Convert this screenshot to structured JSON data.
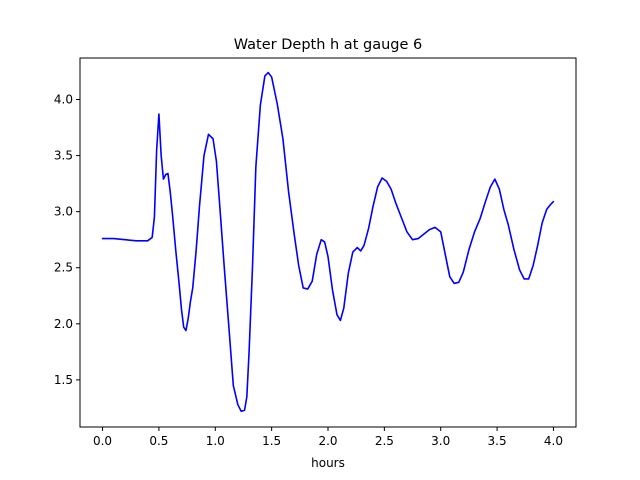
{
  "chart_data": {
    "type": "line",
    "title": "Water Depth h at gauge 6",
    "xlabel": "hours",
    "ylabel": "",
    "xlim": [
      -0.2,
      4.2
    ],
    "ylim": [
      1.08,
      4.37
    ],
    "x_ticks": [
      0.0,
      0.5,
      1.0,
      1.5,
      2.0,
      2.5,
      3.0,
      3.5,
      4.0
    ],
    "x_tick_labels": [
      "0.0",
      "0.5",
      "1.0",
      "1.5",
      "2.0",
      "2.5",
      "3.0",
      "3.5",
      "4.0"
    ],
    "y_ticks": [
      1.5,
      2.0,
      2.5,
      3.0,
      3.5,
      4.0
    ],
    "y_tick_labels": [
      "1.5",
      "2.0",
      "2.5",
      "3.0",
      "3.5",
      "4.0"
    ],
    "grid": false,
    "series": [
      {
        "color": "#0000ff",
        "x": [
          0.0,
          0.1,
          0.2,
          0.3,
          0.4,
          0.44,
          0.46,
          0.48,
          0.5,
          0.52,
          0.54,
          0.56,
          0.58,
          0.6,
          0.62,
          0.65,
          0.68,
          0.7,
          0.72,
          0.74,
          0.76,
          0.78,
          0.8,
          0.83,
          0.86,
          0.9,
          0.94,
          0.98,
          1.01,
          1.04,
          1.08,
          1.12,
          1.16,
          1.2,
          1.23,
          1.26,
          1.28,
          1.3,
          1.33,
          1.36,
          1.4,
          1.44,
          1.47,
          1.5,
          1.55,
          1.6,
          1.65,
          1.7,
          1.74,
          1.78,
          1.82,
          1.86,
          1.9,
          1.94,
          1.97,
          2.0,
          2.04,
          2.08,
          2.11,
          2.14,
          2.18,
          2.22,
          2.26,
          2.29,
          2.32,
          2.36,
          2.4,
          2.44,
          2.48,
          2.52,
          2.56,
          2.6,
          2.65,
          2.7,
          2.75,
          2.8,
          2.85,
          2.9,
          2.95,
          3.0,
          3.04,
          3.08,
          3.12,
          3.16,
          3.2,
          3.25,
          3.3,
          3.35,
          3.4,
          3.44,
          3.48,
          3.52,
          3.56,
          3.6,
          3.65,
          3.7,
          3.74,
          3.78,
          3.82,
          3.86,
          3.9,
          3.94,
          3.98,
          4.0
        ],
        "y": [
          2.76,
          2.76,
          2.75,
          2.74,
          2.74,
          2.77,
          2.95,
          3.55,
          3.87,
          3.5,
          3.29,
          3.33,
          3.34,
          3.18,
          2.98,
          2.65,
          2.35,
          2.13,
          1.97,
          1.94,
          2.05,
          2.2,
          2.32,
          2.65,
          3.05,
          3.5,
          3.69,
          3.65,
          3.45,
          3.05,
          2.5,
          1.98,
          1.45,
          1.28,
          1.22,
          1.23,
          1.35,
          1.75,
          2.5,
          3.4,
          3.95,
          4.21,
          4.24,
          4.2,
          3.96,
          3.65,
          3.18,
          2.8,
          2.52,
          2.32,
          2.31,
          2.38,
          2.62,
          2.75,
          2.73,
          2.6,
          2.3,
          2.08,
          2.03,
          2.14,
          2.45,
          2.64,
          2.68,
          2.65,
          2.7,
          2.85,
          3.05,
          3.22,
          3.3,
          3.27,
          3.2,
          3.08,
          2.95,
          2.82,
          2.75,
          2.76,
          2.8,
          2.84,
          2.86,
          2.82,
          2.62,
          2.42,
          2.36,
          2.37,
          2.46,
          2.66,
          2.82,
          2.94,
          3.1,
          3.22,
          3.29,
          3.2,
          3.02,
          2.88,
          2.66,
          2.48,
          2.4,
          2.4,
          2.52,
          2.7,
          2.9,
          3.02,
          3.07,
          3.09
        ]
      }
    ]
  }
}
